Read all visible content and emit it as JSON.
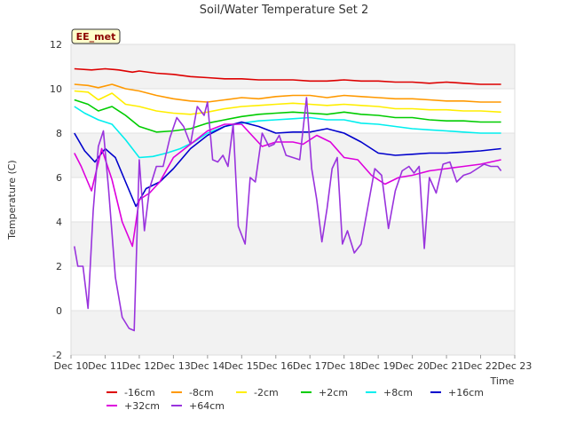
{
  "chart_data": {
    "type": "line",
    "title": "Soil/Water Temperature Set 2",
    "xlabel": "Time",
    "ylabel": "Temperature (C)",
    "badge": "EE_met",
    "xlim": [
      10,
      23
    ],
    "ylim": [
      -2,
      12
    ],
    "x_ticks": [
      10,
      11,
      12,
      13,
      14,
      15,
      16,
      17,
      18,
      19,
      20,
      21,
      22,
      23
    ],
    "x_tick_labels": [
      "Dec 10",
      "Dec 11",
      "Dec 12",
      "Dec 13",
      "Dec 14",
      "Dec 15",
      "Dec 16",
      "Dec 17",
      "Dec 18",
      "Dec 19",
      "Dec 20",
      "Dec 21",
      "Dec 22",
      "Dec 23"
    ],
    "y_ticks": [
      -2,
      0,
      2,
      4,
      6,
      8,
      10,
      12
    ],
    "y_tick_labels": [
      "-2",
      "0",
      "2",
      "4",
      "6",
      "8",
      "10",
      "12"
    ],
    "grid": "horizontal bands",
    "legend_position": "bottom",
    "series": [
      {
        "name": "-16cm",
        "color": "#dd0000",
        "x": [
          10.1,
          10.6,
          11.0,
          11.4,
          11.8,
          12.0,
          12.5,
          13.0,
          13.5,
          14.0,
          14.5,
          15.0,
          15.5,
          16.0,
          16.5,
          17.0,
          17.5,
          18.0,
          18.5,
          19.0,
          19.5,
          20.0,
          20.5,
          21.0,
          21.5,
          22.0,
          22.6
        ],
        "y": [
          10.9,
          10.85,
          10.9,
          10.85,
          10.75,
          10.8,
          10.7,
          10.65,
          10.55,
          10.5,
          10.45,
          10.45,
          10.4,
          10.4,
          10.4,
          10.35,
          10.35,
          10.4,
          10.35,
          10.35,
          10.3,
          10.3,
          10.25,
          10.3,
          10.25,
          10.2,
          10.2
        ]
      },
      {
        "name": "-8cm",
        "color": "#ff9900",
        "x": [
          10.1,
          10.5,
          10.8,
          11.2,
          11.6,
          12.0,
          12.5,
          13.0,
          13.5,
          14.0,
          14.5,
          15.0,
          15.5,
          16.0,
          16.5,
          17.0,
          17.5,
          18.0,
          18.5,
          19.0,
          19.5,
          20.0,
          20.5,
          21.0,
          21.5,
          22.0,
          22.6
        ],
        "y": [
          10.2,
          10.15,
          10.05,
          10.2,
          10.0,
          9.9,
          9.7,
          9.55,
          9.45,
          9.4,
          9.5,
          9.6,
          9.55,
          9.65,
          9.7,
          9.7,
          9.6,
          9.7,
          9.65,
          9.6,
          9.55,
          9.55,
          9.5,
          9.45,
          9.45,
          9.4,
          9.4
        ]
      },
      {
        "name": "-2cm",
        "color": "#ffee00",
        "x": [
          10.1,
          10.5,
          10.8,
          11.2,
          11.6,
          12.0,
          12.5,
          13.0,
          13.5,
          14.0,
          14.5,
          15.0,
          15.5,
          16.0,
          16.5,
          17.0,
          17.5,
          18.0,
          18.5,
          19.0,
          19.5,
          20.0,
          20.5,
          21.0,
          21.5,
          22.0,
          22.6
        ],
        "y": [
          9.9,
          9.85,
          9.5,
          9.8,
          9.3,
          9.2,
          9.0,
          8.9,
          8.85,
          8.95,
          9.1,
          9.2,
          9.25,
          9.3,
          9.35,
          9.3,
          9.25,
          9.3,
          9.25,
          9.2,
          9.1,
          9.1,
          9.05,
          9.05,
          9.0,
          9.0,
          8.95
        ]
      },
      {
        "name": "+2cm",
        "color": "#00cc00",
        "x": [
          10.1,
          10.5,
          10.8,
          11.2,
          11.6,
          12.0,
          12.5,
          13.0,
          13.5,
          14.0,
          14.5,
          15.0,
          15.5,
          16.0,
          16.5,
          17.0,
          17.5,
          18.0,
          18.5,
          19.0,
          19.5,
          20.0,
          20.5,
          21.0,
          21.5,
          22.0,
          22.6
        ],
        "y": [
          9.5,
          9.3,
          9.0,
          9.2,
          8.8,
          8.3,
          8.05,
          8.1,
          8.2,
          8.45,
          8.6,
          8.75,
          8.85,
          8.9,
          8.95,
          8.9,
          8.85,
          8.95,
          8.85,
          8.8,
          8.7,
          8.7,
          8.6,
          8.55,
          8.55,
          8.5,
          8.5
        ]
      },
      {
        "name": "+8cm",
        "color": "#00eeee",
        "x": [
          10.1,
          10.4,
          10.8,
          11.2,
          11.6,
          12.0,
          12.4,
          12.8,
          13.2,
          13.6,
          14.0,
          14.5,
          15.0,
          15.5,
          16.0,
          16.5,
          17.0,
          17.5,
          18.0,
          18.5,
          19.0,
          19.5,
          20.0,
          20.5,
          21.0,
          21.5,
          22.0,
          22.6
        ],
        "y": [
          9.2,
          8.9,
          8.6,
          8.4,
          7.7,
          6.9,
          6.95,
          7.1,
          7.3,
          7.6,
          8.0,
          8.3,
          8.45,
          8.55,
          8.6,
          8.65,
          8.7,
          8.6,
          8.6,
          8.45,
          8.4,
          8.3,
          8.2,
          8.15,
          8.1,
          8.05,
          8.0,
          8.0
        ]
      },
      {
        "name": "+16cm",
        "color": "#0000cc",
        "x": [
          10.1,
          10.4,
          10.7,
          11.0,
          11.3,
          11.6,
          11.9,
          12.2,
          12.6,
          13.0,
          13.5,
          14.0,
          14.5,
          15.0,
          15.5,
          16.0,
          16.5,
          17.0,
          17.5,
          18.0,
          18.5,
          19.0,
          19.5,
          20.0,
          20.5,
          21.0,
          21.5,
          22.0,
          22.6
        ],
        "y": [
          8.0,
          7.2,
          6.7,
          7.3,
          6.9,
          5.8,
          4.7,
          5.5,
          5.8,
          6.4,
          7.3,
          7.9,
          8.3,
          8.5,
          8.3,
          8.0,
          8.05,
          8.05,
          8.2,
          8.0,
          7.6,
          7.1,
          7.0,
          7.05,
          7.1,
          7.1,
          7.15,
          7.2,
          7.3
        ]
      },
      {
        "name": "+32cm",
        "color": "#dd00dd",
        "x": [
          10.1,
          10.3,
          10.6,
          10.9,
          11.2,
          11.5,
          11.8,
          12.0,
          12.3,
          12.6,
          13.0,
          13.5,
          14.0,
          14.5,
          15.0,
          15.3,
          15.6,
          16.0,
          16.5,
          16.8,
          17.2,
          17.6,
          18.0,
          18.4,
          18.8,
          19.2,
          19.6,
          20.0,
          20.5,
          21.0,
          21.5,
          22.0,
          22.6
        ],
        "y": [
          7.1,
          6.5,
          5.4,
          7.3,
          5.9,
          4.0,
          2.9,
          5.0,
          5.3,
          5.8,
          6.9,
          7.5,
          8.1,
          8.4,
          8.4,
          7.9,
          7.4,
          7.6,
          7.6,
          7.5,
          7.9,
          7.6,
          6.9,
          6.8,
          6.1,
          5.7,
          6.0,
          6.1,
          6.3,
          6.4,
          6.5,
          6.6,
          6.8
        ]
      },
      {
        "name": "+64cm",
        "color": "#9933dd",
        "x": [
          10.1,
          10.2,
          10.35,
          10.5,
          10.65,
          10.8,
          10.95,
          11.1,
          11.3,
          11.5,
          11.7,
          11.85,
          12.0,
          12.15,
          12.3,
          12.5,
          12.7,
          12.9,
          13.1,
          13.3,
          13.5,
          13.7,
          13.9,
          14.0,
          14.15,
          14.3,
          14.45,
          14.6,
          14.75,
          14.9,
          15.1,
          15.25,
          15.4,
          15.6,
          15.8,
          15.95,
          16.1,
          16.3,
          16.5,
          16.7,
          16.9,
          17.05,
          17.2,
          17.35,
          17.5,
          17.65,
          17.8,
          17.95,
          18.1,
          18.3,
          18.5,
          18.7,
          18.9,
          19.1,
          19.3,
          19.5,
          19.7,
          19.9,
          20.05,
          20.2,
          20.35,
          20.5,
          20.7,
          20.9,
          21.1,
          21.3,
          21.5,
          21.7,
          21.9,
          22.1,
          22.3,
          22.5,
          22.6
        ],
        "y": [
          2.9,
          2.0,
          2.0,
          0.1,
          4.5,
          7.4,
          8.1,
          5.5,
          1.5,
          -0.3,
          -0.8,
          -0.9,
          6.8,
          3.6,
          5.5,
          6.5,
          6.5,
          7.8,
          8.7,
          8.3,
          7.5,
          9.2,
          8.8,
          9.4,
          6.8,
          6.7,
          7.0,
          6.5,
          8.4,
          3.8,
          3.0,
          6.0,
          5.8,
          8.0,
          7.4,
          7.5,
          7.9,
          7.0,
          6.9,
          6.8,
          9.6,
          6.4,
          5.0,
          3.1,
          4.6,
          6.4,
          6.9,
          3.0,
          3.6,
          2.6,
          3.0,
          4.7,
          6.4,
          6.1,
          3.7,
          5.4,
          6.3,
          6.5,
          6.2,
          6.5,
          2.8,
          6.0,
          5.3,
          6.6,
          6.7,
          5.8,
          6.1,
          6.2,
          6.4,
          6.6,
          6.5,
          6.5,
          6.3
        ]
      }
    ]
  }
}
